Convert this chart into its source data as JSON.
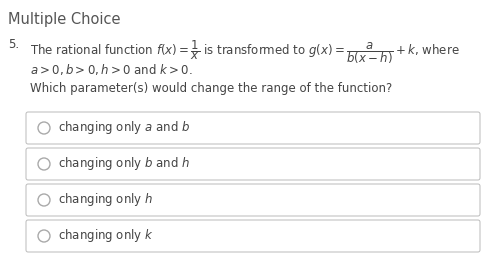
{
  "title": "Multiple Choice",
  "question_number": "5.",
  "line1": "The rational function $f(x)=\\dfrac{1}{x}$ is transformed to $g(x)=\\dfrac{a}{b(x-h)}+k$, where",
  "conditions": "$a>0, b>0, h>0$ and $k>0$.",
  "sub_question": "Which parameter(s) would change the range of the function?",
  "options": [
    "changing only $a$ and $b$",
    "changing only $b$ and $h$",
    "changing only $h$",
    "changing only $k$"
  ],
  "bg_color": "#ffffff",
  "box_facecolor": "#ffffff",
  "box_edgecolor": "#bbbbbb",
  "text_color": "#444444",
  "title_color": "#555555",
  "title_fontsize": 10.5,
  "body_fontsize": 8.5,
  "option_fontsize": 8.5,
  "radio_color": "#aaaaaa"
}
